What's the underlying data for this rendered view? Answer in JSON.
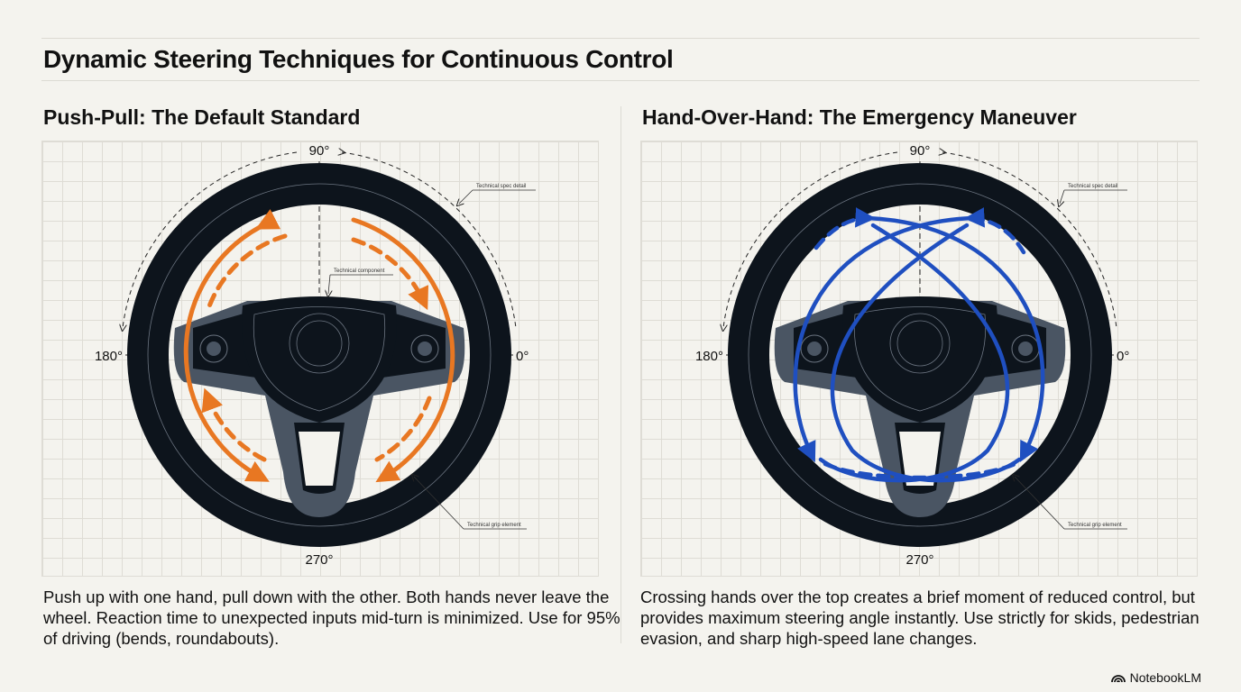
{
  "title": "Dynamic Steering Techniques for Continuous Control",
  "left": {
    "heading": "Push-Pull: The Default Standard",
    "description": "Push up with one hand, pull down with the other. Both hands never leave the wheel. Reaction time to unexpected inputs mid-turn is minimized. Use for 95% of driving (bends, roundabouts).",
    "arrow_color": "#e87722",
    "callouts": [
      "Technical spec detail",
      "Technical component",
      "Technical grip element"
    ]
  },
  "right": {
    "heading": "Hand-Over-Hand: The Emergency Maneuver",
    "description": "Crossing hands over the top creates a brief moment of reduced control, but provides maximum steering angle instantly. Use strictly for skids, pedestrian evasion, and sharp high-speed lane changes.",
    "arrow_color": "#1f4fc0",
    "callouts": [
      "Technical spec detail",
      "Technical grip element"
    ]
  },
  "angles": {
    "top": "90°",
    "left": "180°",
    "right": "0°",
    "bottom": "270°"
  },
  "wheel_color": "#0d141c",
  "spoke_color": "#4a5563",
  "brand": "NotebookLM"
}
